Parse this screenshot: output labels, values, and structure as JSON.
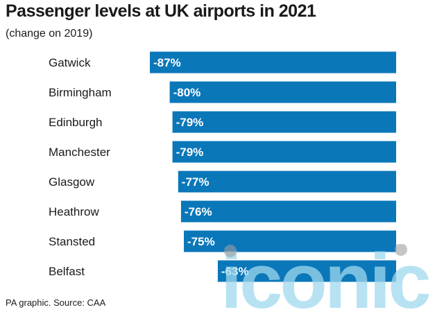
{
  "header": {
    "title": "Passenger levels at UK airports in 2021",
    "subtitle": "(change on 2019)"
  },
  "footer": {
    "source": "PA graphic. Source: CAA"
  },
  "colors": {
    "bar": "#0a77b9",
    "watermark": "#9fd8ee"
  },
  "watermark_text": "iconic",
  "chart_data": {
    "type": "bar",
    "orientation": "horizontal",
    "title": "Passenger levels at UK airports in 2021",
    "subtitle": "(change on 2019)",
    "categories": [
      "Gatwick",
      "Birmingham",
      "Edinburgh",
      "Manchester",
      "Glasgow",
      "Heathrow",
      "Stansted",
      "Belfast"
    ],
    "values": [
      -87,
      -80,
      -79,
      -79,
      -77,
      -76,
      -75,
      -63
    ],
    "value_labels": [
      "-87%",
      "-80%",
      "-79%",
      "-79%",
      "-77%",
      "-76%",
      "-75%",
      "-63%"
    ],
    "unit": "%",
    "xlim": [
      -87,
      0
    ],
    "grid": false,
    "legend": "none"
  }
}
